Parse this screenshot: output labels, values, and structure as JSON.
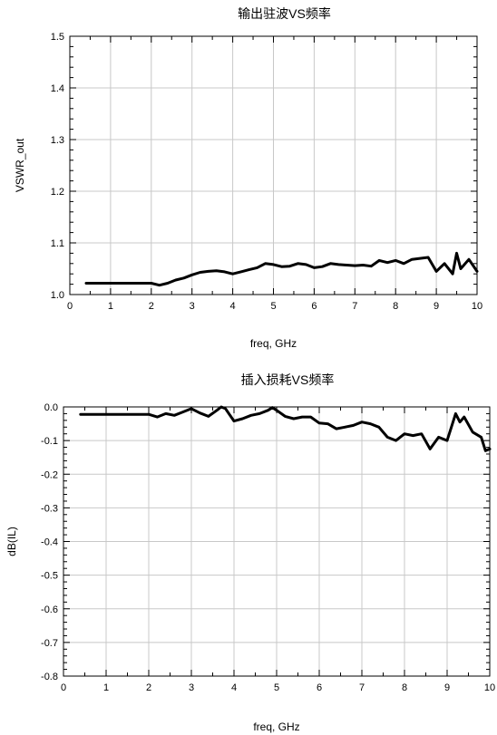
{
  "chart_data": [
    {
      "type": "line",
      "title": "输出驻波VS频率",
      "xlabel": "freq, GHz",
      "ylabel": "VSWR_out",
      "xlim": [
        0,
        10
      ],
      "ylim": [
        1.0,
        1.5
      ],
      "xticks": [
        "0",
        "1",
        "2",
        "3",
        "4",
        "5",
        "6",
        "7",
        "8",
        "9",
        "10"
      ],
      "yticks": [
        "1.0",
        "1.1",
        "1.2",
        "1.3",
        "1.4",
        "1.5"
      ],
      "grid": true,
      "series": [
        {
          "x": [
            0.4,
            0.8,
            1.2,
            1.6,
            2.0,
            2.2,
            2.4,
            2.6,
            2.8,
            3.0,
            3.2,
            3.4,
            3.6,
            3.8,
            4.0,
            4.2,
            4.4,
            4.6,
            4.8,
            5.0,
            5.2,
            5.4,
            5.6,
            5.8,
            6.0,
            6.2,
            6.4,
            6.6,
            6.8,
            7.0,
            7.2,
            7.4,
            7.6,
            7.8,
            8.0,
            8.2,
            8.4,
            8.6,
            8.8,
            9.0,
            9.2,
            9.4,
            9.5,
            9.6,
            9.8,
            10.0
          ],
          "y": [
            1.022,
            1.022,
            1.022,
            1.022,
            1.022,
            1.018,
            1.022,
            1.028,
            1.032,
            1.038,
            1.043,
            1.045,
            1.046,
            1.044,
            1.04,
            1.044,
            1.048,
            1.052,
            1.06,
            1.058,
            1.054,
            1.055,
            1.06,
            1.058,
            1.052,
            1.054,
            1.06,
            1.058,
            1.057,
            1.056,
            1.057,
            1.055,
            1.066,
            1.062,
            1.066,
            1.06,
            1.068,
            1.07,
            1.072,
            1.045,
            1.06,
            1.04,
            1.08,
            1.05,
            1.068,
            1.045
          ]
        }
      ]
    },
    {
      "type": "line",
      "title": "插入损耗VS频率",
      "xlabel": "freq, GHz",
      "ylabel": "dB(IL)",
      "xlim": [
        0,
        10
      ],
      "ylim": [
        -0.8,
        0.0
      ],
      "xticks": [
        "0",
        "1",
        "2",
        "3",
        "4",
        "5",
        "6",
        "7",
        "8",
        "9",
        "10"
      ],
      "yticks": [
        "0.0",
        "-0.1",
        "-0.2",
        "-0.3",
        "-0.4",
        "-0.5",
        "-0.6",
        "-0.7",
        "-0.8"
      ],
      "grid": true,
      "series": [
        {
          "x": [
            0.4,
            0.8,
            1.2,
            1.6,
            2.0,
            2.2,
            2.4,
            2.6,
            2.8,
            3.0,
            3.2,
            3.4,
            3.6,
            3.7,
            3.8,
            4.0,
            4.2,
            4.4,
            4.6,
            4.8,
            4.9,
            5.0,
            5.2,
            5.4,
            5.6,
            5.8,
            6.0,
            6.2,
            6.4,
            6.6,
            6.8,
            7.0,
            7.2,
            7.4,
            7.6,
            7.8,
            8.0,
            8.2,
            8.4,
            8.6,
            8.8,
            9.0,
            9.1,
            9.2,
            9.3,
            9.4,
            9.6,
            9.8,
            9.9,
            10.0
          ],
          "y": [
            -0.022,
            -0.022,
            -0.022,
            -0.022,
            -0.022,
            -0.03,
            -0.02,
            -0.025,
            -0.015,
            -0.005,
            -0.018,
            -0.028,
            -0.01,
            0.0,
            -0.005,
            -0.042,
            -0.035,
            -0.025,
            -0.02,
            -0.01,
            -0.002,
            -0.01,
            -0.028,
            -0.035,
            -0.03,
            -0.03,
            -0.048,
            -0.05,
            -0.065,
            -0.06,
            -0.055,
            -0.045,
            -0.05,
            -0.06,
            -0.09,
            -0.1,
            -0.08,
            -0.085,
            -0.08,
            -0.125,
            -0.09,
            -0.1,
            -0.06,
            -0.02,
            -0.045,
            -0.03,
            -0.075,
            -0.09,
            -0.13,
            -0.125
          ]
        }
      ]
    }
  ]
}
